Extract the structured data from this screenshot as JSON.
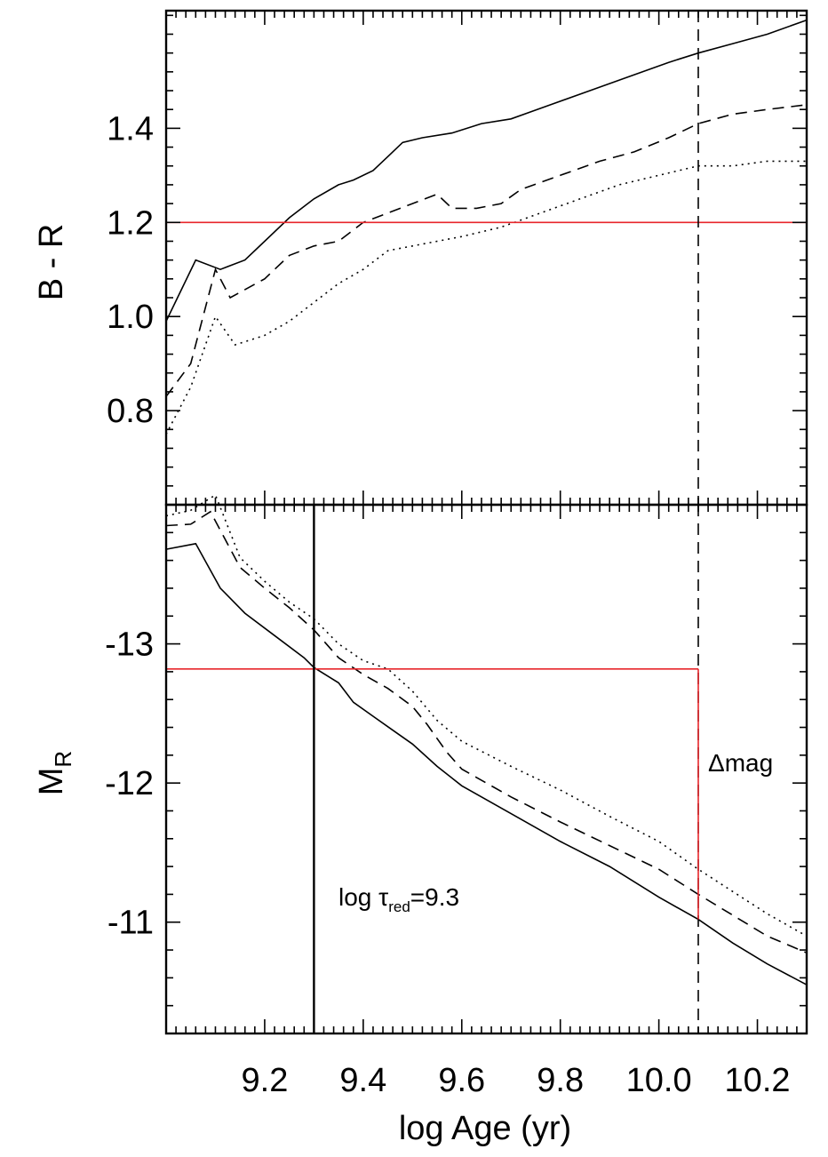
{
  "chart_data": [
    {
      "type": "line",
      "ylabel": "B - R",
      "xlim": [
        9.0,
        10.3
      ],
      "ylim": [
        0.6,
        1.65
      ],
      "yticks": [
        0.8,
        1.0,
        1.2,
        1.4
      ],
      "ytick_labels": [
        "0.8",
        "1.0",
        "1.2",
        "1.4"
      ],
      "xticks": [
        9.2,
        9.4,
        9.6,
        9.8,
        10.0,
        10.2
      ],
      "series": [
        {
          "style": "solid",
          "color": "#000000",
          "x": [
            9.0,
            9.06,
            9.11,
            9.16,
            9.2,
            9.25,
            9.3,
            9.35,
            9.38,
            9.42,
            9.45,
            9.48,
            9.52,
            9.58,
            9.64,
            9.7,
            9.78,
            9.86,
            9.94,
            10.02,
            10.08,
            10.15,
            10.22,
            10.3
          ],
          "y": [
            0.99,
            1.12,
            1.1,
            1.12,
            1.16,
            1.21,
            1.25,
            1.28,
            1.29,
            1.31,
            1.34,
            1.37,
            1.38,
            1.39,
            1.41,
            1.42,
            1.45,
            1.48,
            1.51,
            1.54,
            1.56,
            1.58,
            1.6,
            1.63
          ]
        },
        {
          "style": "dashed",
          "color": "#000000",
          "x": [
            9.0,
            9.05,
            9.1,
            9.13,
            9.2,
            9.25,
            9.3,
            9.35,
            9.4,
            9.45,
            9.5,
            9.55,
            9.58,
            9.63,
            9.68,
            9.72,
            9.8,
            9.88,
            9.95,
            10.02,
            10.08,
            10.15,
            10.22,
            10.3
          ],
          "y": [
            0.83,
            0.9,
            1.1,
            1.04,
            1.08,
            1.13,
            1.15,
            1.16,
            1.2,
            1.22,
            1.24,
            1.26,
            1.23,
            1.23,
            1.24,
            1.27,
            1.3,
            1.33,
            1.35,
            1.38,
            1.41,
            1.43,
            1.44,
            1.45
          ]
        },
        {
          "style": "dotted",
          "color": "#000000",
          "x": [
            9.0,
            9.05,
            9.1,
            9.14,
            9.2,
            9.25,
            9.3,
            9.35,
            9.4,
            9.45,
            9.5,
            9.55,
            9.6,
            9.68,
            9.76,
            9.84,
            9.92,
            10.0,
            10.08,
            10.15,
            10.22,
            10.3
          ],
          "y": [
            0.75,
            0.85,
            1.0,
            0.94,
            0.96,
            0.99,
            1.03,
            1.07,
            1.1,
            1.14,
            1.15,
            1.16,
            1.17,
            1.19,
            1.22,
            1.25,
            1.28,
            1.3,
            1.32,
            1.32,
            1.33,
            1.33
          ]
        }
      ],
      "hlines": [
        {
          "y": 1.2,
          "color": "#e8262b"
        }
      ],
      "vlines": [
        {
          "x": 10.08,
          "style": "dashed",
          "color": "#000000"
        }
      ]
    },
    {
      "type": "line",
      "ylabel": "M",
      "ylabel_sub": "R",
      "xlabel": "log Age (yr)",
      "xlim": [
        9.0,
        10.3
      ],
      "ylim": [
        -14.0,
        -10.2
      ],
      "y_inverted": true,
      "yticks": [
        -13,
        -12,
        -11
      ],
      "ytick_labels": [
        "-13",
        "-12",
        "-11"
      ],
      "xticks": [
        9.2,
        9.4,
        9.6,
        9.8,
        10.0,
        10.2
      ],
      "xtick_labels": [
        "9.2",
        "9.4",
        "9.6",
        "9.8",
        "10.0",
        "10.2"
      ],
      "series": [
        {
          "style": "solid",
          "color": "#000000",
          "x": [
            9.0,
            9.06,
            9.11,
            9.16,
            9.22,
            9.28,
            9.3,
            9.35,
            9.38,
            9.42,
            9.46,
            9.5,
            9.55,
            9.6,
            9.7,
            9.8,
            9.9,
            10.0,
            10.08,
            10.15,
            10.22,
            10.3
          ],
          "y": [
            -13.68,
            -13.72,
            -13.4,
            -13.22,
            -13.06,
            -12.9,
            -12.83,
            -12.72,
            -12.58,
            -12.48,
            -12.38,
            -12.28,
            -12.12,
            -11.98,
            -11.78,
            -11.58,
            -11.4,
            -11.18,
            -11.02,
            -10.85,
            -10.7,
            -10.55
          ]
        },
        {
          "style": "dashed",
          "color": "#000000",
          "x": [
            9.0,
            9.05,
            9.09,
            9.15,
            9.2,
            9.25,
            9.3,
            9.35,
            9.4,
            9.45,
            9.5,
            9.53,
            9.57,
            9.6,
            9.65,
            9.7,
            9.8,
            9.9,
            10.0,
            10.08,
            10.15,
            10.22,
            10.3
          ],
          "y": [
            -13.85,
            -13.86,
            -13.95,
            -13.55,
            -13.4,
            -13.26,
            -13.1,
            -12.9,
            -12.78,
            -12.68,
            -12.55,
            -12.42,
            -12.22,
            -12.1,
            -12.0,
            -11.9,
            -11.72,
            -11.55,
            -11.38,
            -11.2,
            -11.05,
            -10.9,
            -10.78
          ]
        },
        {
          "style": "dotted",
          "color": "#000000",
          "x": [
            9.0,
            9.05,
            9.1,
            9.15,
            9.2,
            9.25,
            9.3,
            9.35,
            9.4,
            9.45,
            9.5,
            9.55,
            9.6,
            9.7,
            9.8,
            9.9,
            10.0,
            10.08,
            10.15,
            10.22,
            10.3
          ],
          "y": [
            -13.92,
            -13.96,
            -14.07,
            -13.62,
            -13.45,
            -13.3,
            -13.18,
            -13.0,
            -12.88,
            -12.82,
            -12.66,
            -12.45,
            -12.3,
            -12.12,
            -11.95,
            -11.76,
            -11.58,
            -11.38,
            -11.22,
            -11.06,
            -10.9
          ]
        }
      ],
      "hlines": [
        {
          "y": -12.82,
          "x_end": 10.08,
          "color": "#e8262b"
        }
      ],
      "vlines": [
        {
          "x": 9.3,
          "style": "solid",
          "color": "#000000"
        },
        {
          "x": 10.08,
          "style": "dashed",
          "color": "#000000"
        },
        {
          "x": 10.08,
          "y_from": -12.82,
          "y_to": -11.02,
          "style": "solid",
          "color": "#e8262b"
        }
      ],
      "annotations": {
        "delta_mag": "Δmag",
        "tau_prefix": "log τ",
        "tau_sub": "red",
        "tau_suffix": "=9.3"
      }
    }
  ]
}
